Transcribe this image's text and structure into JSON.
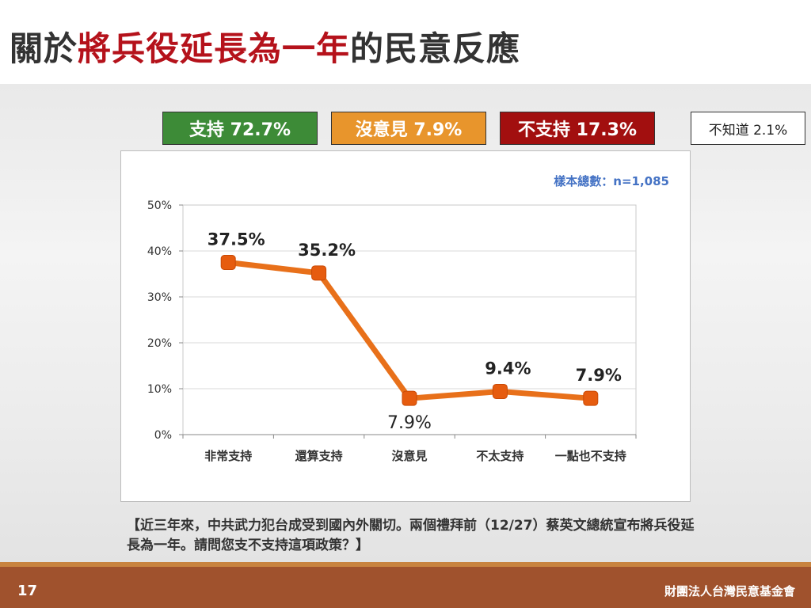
{
  "title": {
    "prefix": "關於",
    "highlight": "將兵役延長為一年",
    "suffix": "的民意反應"
  },
  "summary": [
    {
      "label": "支持 72.7%",
      "bg": "#3d8b37",
      "fg": "#ffffff"
    },
    {
      "label": "沒意見 7.9%",
      "bg": "#e8952c",
      "fg": "#ffffff"
    },
    {
      "label": "不支持 17.3%",
      "bg": "#a20f0f",
      "fg": "#ffffff"
    },
    {
      "label": "不知道 2.1%",
      "bg": "#ffffff",
      "fg": "#222222"
    }
  ],
  "sample_size": "樣本總數：n=1,085",
  "chart_data": {
    "type": "line",
    "categories": [
      "非常支持",
      "還算支持",
      "沒意見",
      "不太支持",
      "一點也不支持"
    ],
    "values": [
      37.5,
      35.2,
      7.9,
      9.4,
      7.9
    ],
    "data_labels": [
      "37.5%",
      "35.2%",
      "7.9%",
      "9.4%",
      "7.9%"
    ],
    "label_position": [
      "above",
      "above",
      "below",
      "above",
      "above"
    ],
    "yticks": [
      "0%",
      "10%",
      "20%",
      "30%",
      "40%",
      "50%"
    ],
    "ylim": [
      0,
      50
    ],
    "grid": true,
    "line_color": "#e8701a",
    "marker_color": "#e65c0f",
    "title": "",
    "xlabel": "",
    "ylabel": ""
  },
  "question": "【近三年來，中共武力犯台成受到國內外關切。兩個禮拜前（12/27）蔡英文總統宣布將兵役延長為一年。請問您支不支持這項政策？】",
  "footer": {
    "page_number": "17",
    "organization": "財團法人台灣民意基金會"
  }
}
